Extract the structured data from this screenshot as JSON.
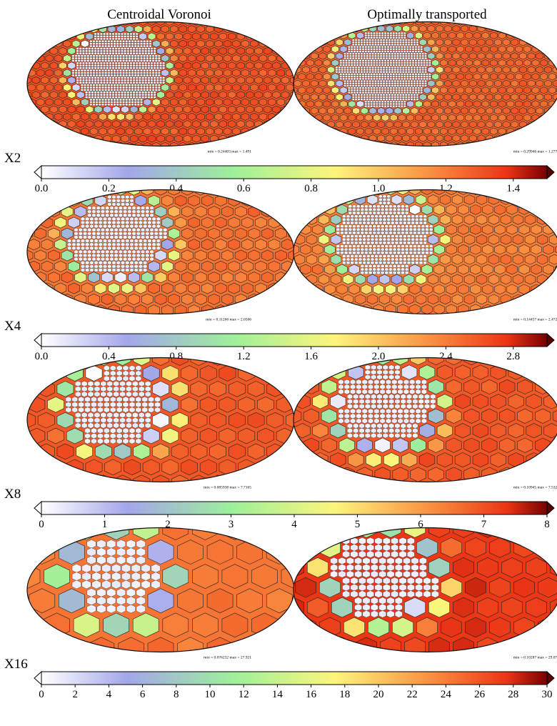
{
  "headers": {
    "left": "Centroidal Voronoi",
    "right": "Optimally transported"
  },
  "colormap": [
    "#ffffff",
    "#a3a6ea",
    "#9ef09a",
    "#fdf57c",
    "#f98a3e",
    "#ec3516",
    "#780000"
  ],
  "rows": [
    {
      "label": "X2",
      "vmax": 1.5,
      "ticks": [
        "0.0",
        "0.2",
        "0.4",
        "0.6",
        "0.8",
        "1.0",
        "1.2",
        "1.4"
      ],
      "tick_values": [
        0,
        0.2,
        0.4,
        0.6,
        0.8,
        1.0,
        1.2,
        1.4
      ],
      "left": {
        "stats": "min = 0.24403    max = 1.491",
        "bg_level": 1.3,
        "ring_width": 0.1,
        "cells": 30
      },
      "right": {
        "stats": "min = 0.29946    max = 1.2775",
        "bg_level": 1.26,
        "ring_width": 0.1,
        "cells": 32
      }
    },
    {
      "label": "X4",
      "vmax": 3.0,
      "ticks": [
        "0.0",
        "0.4",
        "0.8",
        "1.2",
        "1.6",
        "2.0",
        "2.4",
        "2.8"
      ],
      "tick_values": [
        0,
        0.4,
        0.8,
        1.2,
        1.6,
        2.0,
        2.4,
        2.8
      ],
      "left": {
        "stats": "min = 0.11266    max = 2.6566",
        "bg_level": 2.45,
        "ring_width": 0.16,
        "cells": 20
      },
      "right": {
        "stats": "min = 0.14457    max = 2.4726",
        "bg_level": 2.4,
        "ring_width": 0.16,
        "cells": 22
      }
    },
    {
      "label": "X8",
      "vmax": 8,
      "ticks": [
        "0",
        "1",
        "2",
        "3",
        "4",
        "5",
        "6",
        "7",
        "8"
      ],
      "tick_values": [
        0,
        1,
        2,
        3,
        4,
        5,
        6,
        7,
        8
      ],
      "left": {
        "stats": "min = 0.085938    max = 7.7165",
        "bg_level": 6.9,
        "ring_width": 0.2,
        "cells": 14
      },
      "right": {
        "stats": "min = 0.10945    max = 7.5329",
        "bg_level": 6.9,
        "ring_width": 0.2,
        "cells": 15
      }
    },
    {
      "label": "X16",
      "vmax": 30,
      "ticks": [
        "0",
        "2",
        "4",
        "6",
        "8",
        "10",
        "12",
        "14",
        "16",
        "18",
        "20",
        "22",
        "24",
        "26",
        "28",
        "30"
      ],
      "tick_values": [
        0,
        2,
        4,
        6,
        8,
        10,
        12,
        14,
        16,
        18,
        20,
        22,
        24,
        26,
        28,
        30
      ],
      "left": {
        "stats": "min = 0.076232    max = 27.921",
        "bg_level": 24.5,
        "ring_width": 0.24,
        "cells": 9
      },
      "right": {
        "stats": "min = 0.10287    max = 29.077",
        "bg_level": 27.5,
        "ring_width": 0.24,
        "cells": 11
      }
    }
  ]
}
